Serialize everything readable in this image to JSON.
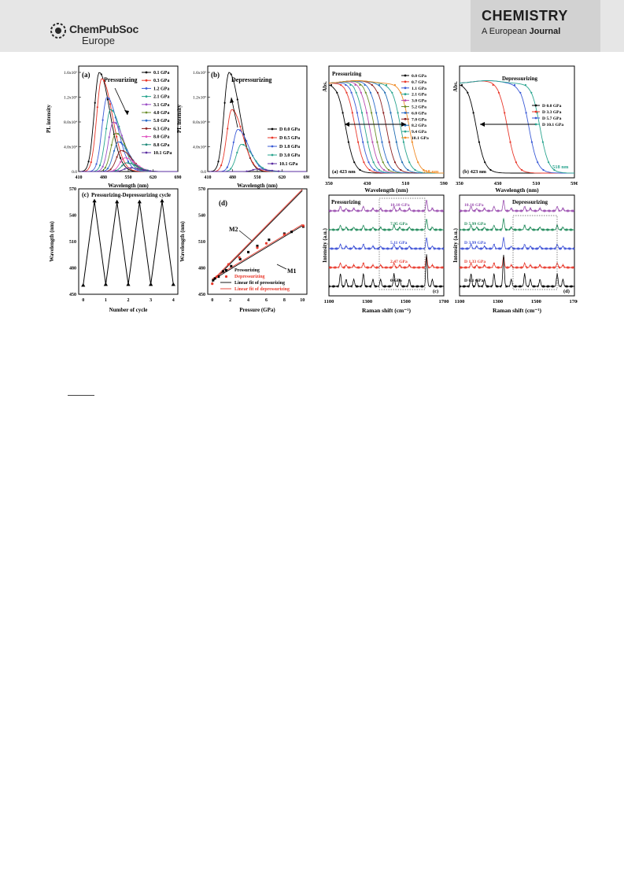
{
  "header": {
    "publisher_name": "ChemPubSoc",
    "publisher_sub": "Europe",
    "journal_title": "CHEMISTRY",
    "journal_sub_a": "A European",
    "journal_sub_b": "Journal"
  },
  "left_figure": {
    "panel_a": {
      "label": "(a)",
      "annotation": "Pressurizing",
      "ylabel": "PL intensity",
      "xlabel": "Wavelength (nm)",
      "xticks": [
        "410",
        "480",
        "550",
        "620",
        "690"
      ],
      "yticks": [
        "0.0",
        "4.0x10⁴",
        "8.0x10⁴",
        "1.2x10⁵",
        "1.6x10⁵"
      ],
      "legend": [
        "0.1 GPa",
        "0.3 GPa",
        "1.2 GPa",
        "2.1 GPa",
        "3.1 GPa",
        "4.0 GPa",
        "5.0 GPa",
        "6.3 GPa",
        "8.0 GPa",
        "8.8 GPa",
        "10.1 GPa"
      ]
    },
    "panel_b": {
      "label": "(b)",
      "annotation": "Depressurizing",
      "ylabel": "PL intensity",
      "xlabel": "Wavelength (nm)",
      "xticks": [
        "410",
        "480",
        "550",
        "620",
        "690"
      ],
      "yticks": [
        "0.0",
        "4.0x10⁴",
        "8.0x10⁴",
        "1.2x10⁵",
        "1.6x10⁵"
      ],
      "legend": [
        "D 0.0 GPa",
        "D 0.5 GPa",
        "D 1.8 GPa",
        "D 3.0 GPa",
        "10.1 GPa"
      ]
    },
    "panel_c": {
      "label": "(c)",
      "annotation": "Pressurizing-Depressurizing cycle",
      "ylabel": "Wavelength (nm)",
      "xlabel": "Number of cycle",
      "xticks": [
        "0",
        "1",
        "2",
        "3",
        "4"
      ],
      "yticks": [
        "450",
        "480",
        "510",
        "540",
        "570"
      ]
    },
    "panel_d": {
      "label": "(d)",
      "ylabel": "Wavelength (nm)",
      "xlabel": "Pressure (GPa)",
      "xticks": [
        "0",
        "2",
        "4",
        "6",
        "8",
        "10"
      ],
      "yticks": [
        "450",
        "480",
        "510",
        "540",
        "570"
      ],
      "m2": "M2",
      "m1": "M1",
      "legend": [
        "Pressurizing",
        "Depressurizing",
        "Linear fit of pressurizing",
        "Linear fit of depressurizing"
      ]
    }
  },
  "right_figure": {
    "panel_a": {
      "label": "(a) 423 nm",
      "annotation": "Pressurizing",
      "ylabel": "Abs.",
      "xlabel": "Wavelength (nm)",
      "xticks": [
        "350",
        "430",
        "510",
        "590"
      ],
      "edge_label": "518 nm",
      "legend": [
        "0.0 GPa",
        "0.7 GPa",
        "1.1 GPa",
        "2.1 GPa",
        "3.0 GPa",
        "5.2 GPa",
        "6.0 GPa",
        "7.0 GPa",
        "8.2 GPa",
        "9.4 GPa",
        "10.1 GPa"
      ]
    },
    "panel_b": {
      "label": "(b) 423 nm",
      "annotation": "Depressurizing",
      "ylabel": "Abs.",
      "xlabel": "Wavelength (nm)",
      "xticks": [
        "350",
        "430",
        "510",
        "590"
      ],
      "edge_label": "518 nm",
      "legend": [
        "D 0.0 GPa",
        "D 3.3 GPa",
        "D 5.7 GPa",
        "D 10.1 GPa"
      ]
    },
    "panel_c": {
      "label": "(c)",
      "annotation": "Pressurizing",
      "ylabel": "Intensity (a.u.)",
      "xlabel": "Raman shift (cm⁻¹)",
      "xticks": [
        "1100",
        "1300",
        "1500",
        "1700"
      ],
      "traces": [
        "10.10 GPa",
        "7.95 GPa",
        "5.11 GPa",
        "2.47 GPa",
        "0 GPa"
      ]
    },
    "panel_d": {
      "label": "(d)",
      "annotation": "Depressurizing",
      "ylabel": "Intensity (a.u.)",
      "xlabel": "Raman shift (cm⁻¹)",
      "xticks": [
        "1100",
        "1300",
        "1500",
        "1700"
      ],
      "traces": [
        "10.10 GPa",
        "D 5.99 GPa",
        "D 3.99 GPa",
        "D 1.33 GPa",
        "D 0.1 GPa"
      ]
    }
  },
  "chart_data": [
    {
      "type": "line",
      "title": "",
      "xlabel": "Wavelength (nm)",
      "ylabel": "PL intensity",
      "xlim": [
        410,
        690
      ],
      "ylim": [
        0,
        160000
      ],
      "series": [
        {
          "name": "0.1 GPa",
          "peak_x": 468,
          "peak_y": 160000
        },
        {
          "name": "0.3 GPa",
          "peak_x": 475,
          "peak_y": 150000
        },
        {
          "name": "1.2 GPa",
          "peak_x": 490,
          "peak_y": 120000
        },
        {
          "name": "2.1 GPa",
          "peak_x": 500,
          "peak_y": 100000
        },
        {
          "name": "3.1 GPa",
          "peak_x": 508,
          "peak_y": 80000
        },
        {
          "name": "4.0 GPa",
          "peak_x": 515,
          "peak_y": 62000
        },
        {
          "name": "5.0 GPa",
          "peak_x": 522,
          "peak_y": 48000
        },
        {
          "name": "6.3 GPa",
          "peak_x": 530,
          "peak_y": 34000
        },
        {
          "name": "8.0 GPa",
          "peak_x": 540,
          "peak_y": 22000
        },
        {
          "name": "8.8 GPa",
          "peak_x": 545,
          "peak_y": 14000
        },
        {
          "name": "10.1 GPa",
          "peak_x": 552,
          "peak_y": 6000
        }
      ]
    },
    {
      "type": "line",
      "title": "",
      "xlabel": "Wavelength (nm)",
      "ylabel": "PL intensity",
      "xlim": [
        410,
        690
      ],
      "ylim": [
        0,
        160000
      ],
      "series": [
        {
          "name": "D 0.0 GPa",
          "peak_x": 470,
          "peak_y": 160000
        },
        {
          "name": "D 0.5 GPa",
          "peak_x": 478,
          "peak_y": 100000
        },
        {
          "name": "D 1.8 GPa",
          "peak_x": 495,
          "peak_y": 68000
        },
        {
          "name": "D 3.0 GPa",
          "peak_x": 505,
          "peak_y": 44000
        },
        {
          "name": "10.1 GPa",
          "peak_x": 550,
          "peak_y": 4000
        }
      ]
    },
    {
      "type": "line",
      "title": "",
      "xlabel": "Number of cycle",
      "ylabel": "Wavelength (nm)",
      "xlim": [
        -0.2,
        4.2
      ],
      "ylim": [
        450,
        570
      ],
      "x": [
        0,
        0.5,
        1,
        1.5,
        2,
        2.5,
        3,
        3.5,
        4
      ],
      "values": [
        460,
        556,
        461,
        555,
        461,
        555,
        461,
        556,
        461
      ]
    },
    {
      "type": "scatter",
      "title": "",
      "xlabel": "Pressure (GPa)",
      "ylabel": "Wavelength (nm)",
      "xlim": [
        -0.5,
        10.5
      ],
      "ylim": [
        450,
        570
      ],
      "series": [
        {
          "name": "Pressurizing",
          "x": [
            0.1,
            0.3,
            0.7,
            1.2,
            2.1,
            3.1,
            4.0,
            5.0,
            6.3,
            8.0,
            8.8,
            10.1
          ],
          "values": [
            466,
            468,
            470,
            476,
            482,
            490,
            498,
            505,
            512,
            519,
            521,
            527
          ]
        },
        {
          "name": "Depressurizing",
          "x": [
            10.1,
            8.0,
            6.0,
            5.0,
            3.0,
            1.8,
            0.5,
            0.0
          ],
          "values": [
            528,
            518,
            508,
            503,
            492,
            484,
            470,
            462
          ]
        },
        {
          "name": "M2",
          "x": [
            0,
            10
          ],
          "values": [
            464,
            568
          ]
        },
        {
          "name": "M1",
          "x": [
            0,
            10
          ],
          "values": [
            466,
            528
          ]
        }
      ]
    },
    {
      "type": "line",
      "title": "",
      "xlabel": "Wavelength (nm)",
      "ylabel": "Abs.",
      "xlim": [
        350,
        590
      ],
      "series_edges_nm": [
        385,
        405,
        415,
        425,
        435,
        445,
        455,
        470,
        485,
        500,
        518
      ]
    },
    {
      "type": "line",
      "title": "",
      "xlabel": "Wavelength (nm)",
      "ylabel": "Abs.",
      "xlim": [
        350,
        590
      ],
      "series_edges_nm": [
        385,
        450,
        495,
        518
      ]
    },
    {
      "type": "line",
      "title": "",
      "xlabel": "Raman shift (cm⁻¹)",
      "ylabel": "Intensity (a.u.)",
      "xlim": [
        1100,
        1700
      ],
      "traces": [
        "10.10 GPa",
        "7.95 GPa",
        "5.11 GPa",
        "2.47 GPa",
        "0 GPa"
      ]
    },
    {
      "type": "line",
      "title": "",
      "xlabel": "Raman shift (cm⁻¹)",
      "ylabel": "Intensity (a.u.)",
      "xlim": [
        1100,
        1700
      ],
      "traces": [
        "10.10 GPa",
        "D 5.99 GPa",
        "D 3.99 GPa",
        "D 1.33 GPa",
        "D 0.1 GPa"
      ]
    }
  ],
  "colors": {
    "p_series": [
      "#000000",
      "#e8372a",
      "#3b5bd6",
      "#2aa58f",
      "#9c4fc6",
      "#6b8e2a",
      "#2b6cc8",
      "#8b1f1f",
      "#e055c0",
      "#1f8a7a",
      "#5a2ca0"
    ],
    "d_series": [
      "#000000",
      "#e8372a",
      "#3b5bd6",
      "#2aa58f",
      "#5a2ca0"
    ],
    "abs_series": [
      "#000000",
      "#e8372a",
      "#3b5bd6",
      "#2aa58f",
      "#b84bb0",
      "#6b8e2a",
      "#2b6cc8",
      "#8b1f1f",
      "#1f6cb2",
      "#2aa58f",
      "#f08a24"
    ],
    "abs_d_series": [
      "#000000",
      "#e8372a",
      "#3b5bd6",
      "#2aa58f"
    ],
    "raman_p": [
      "#9b4fb0",
      "#1f8a5a",
      "#3b4fd6",
      "#e8372a",
      "#000000"
    ],
    "raman_d": [
      "#9b4fb0",
      "#1f8a5a",
      "#3b4fd6",
      "#e8372a",
      "#000000"
    ],
    "edge_label": "#f08a24",
    "edge_label_b": "#2aa58f"
  }
}
